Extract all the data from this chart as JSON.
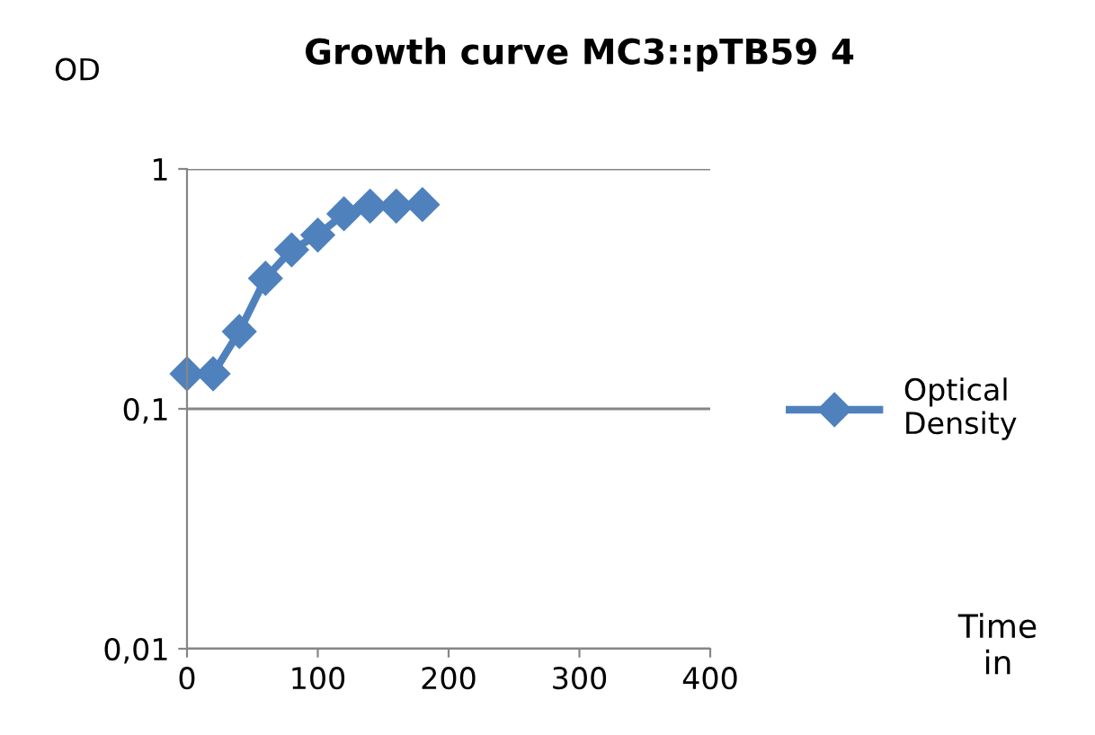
{
  "chart_data": {
    "type": "line",
    "title": "Growth curve MC3::pTB59 4",
    "ylabel": "OD",
    "annotations": [
      "Time in"
    ],
    "x": [
      0,
      20,
      40,
      60,
      80,
      100,
      120,
      140,
      160,
      180
    ],
    "series": [
      {
        "name": "Optical Density",
        "color": "#4f81bd",
        "values": [
          0.14,
          0.14,
          0.21,
          0.35,
          0.46,
          0.53,
          0.65,
          0.7,
          0.7,
          0.71
        ]
      }
    ],
    "log": "y",
    "xlim": [
      0,
      400
    ],
    "xticks": [
      0,
      100,
      200,
      300,
      400
    ],
    "ylim": [
      0.01,
      1
    ],
    "yticks": [
      {
        "value": 0.01,
        "label": "0,01"
      },
      {
        "value": 0.1,
        "label": "0,1"
      },
      {
        "value": 1,
        "label": "1"
      }
    ],
    "grid": "y",
    "legend": "right",
    "marker": "diamond",
    "line_style": "solid"
  }
}
